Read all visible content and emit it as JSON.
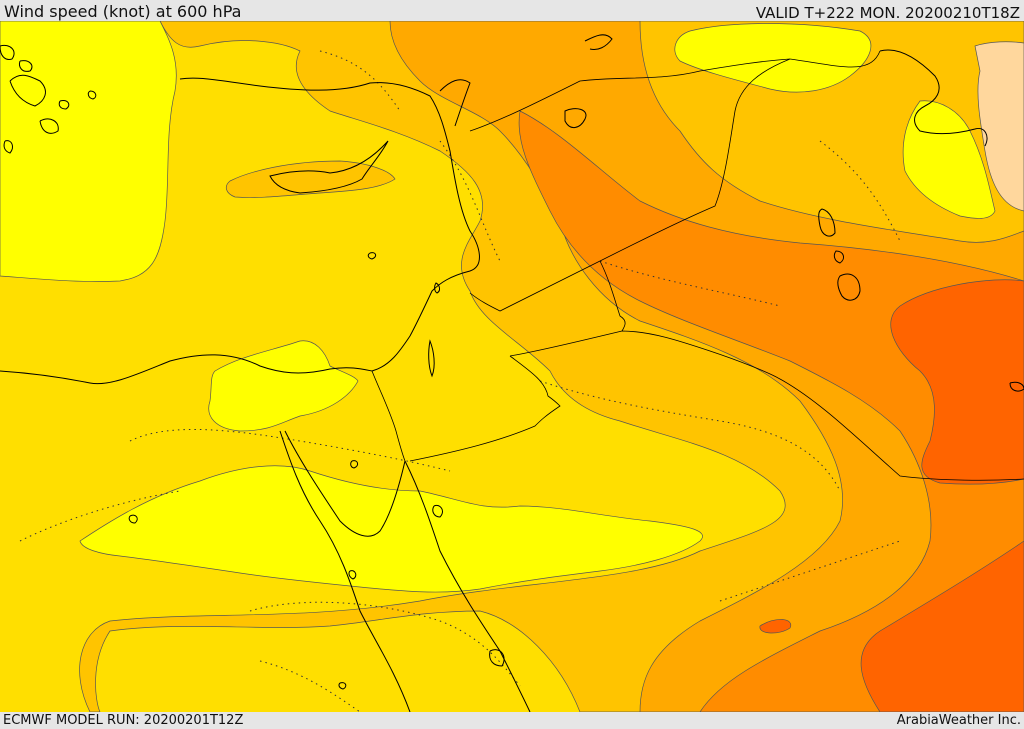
{
  "header": {
    "title": "Wind speed (knot) at 600 hPa",
    "valid": "VALID T+222 MON. 20200210T18Z"
  },
  "footer": {
    "model_run": "ECMWF MODEL RUN: 20200201T12Z",
    "credit": "ArabiaWeather Inc."
  },
  "map": {
    "region": "Eastern Mediterranean and Middle East",
    "colors": {
      "band_light_yellow": "#ffff00",
      "band_yellow": "#ffdf00",
      "band_gold": "#ffc400",
      "band_orange_light": "#ffa900",
      "band_orange": "#ff8c00",
      "band_dark_orange": "#ff6400",
      "band_peach": "#ffd79d",
      "coastline": "#000000",
      "contour": "#444444"
    }
  }
}
